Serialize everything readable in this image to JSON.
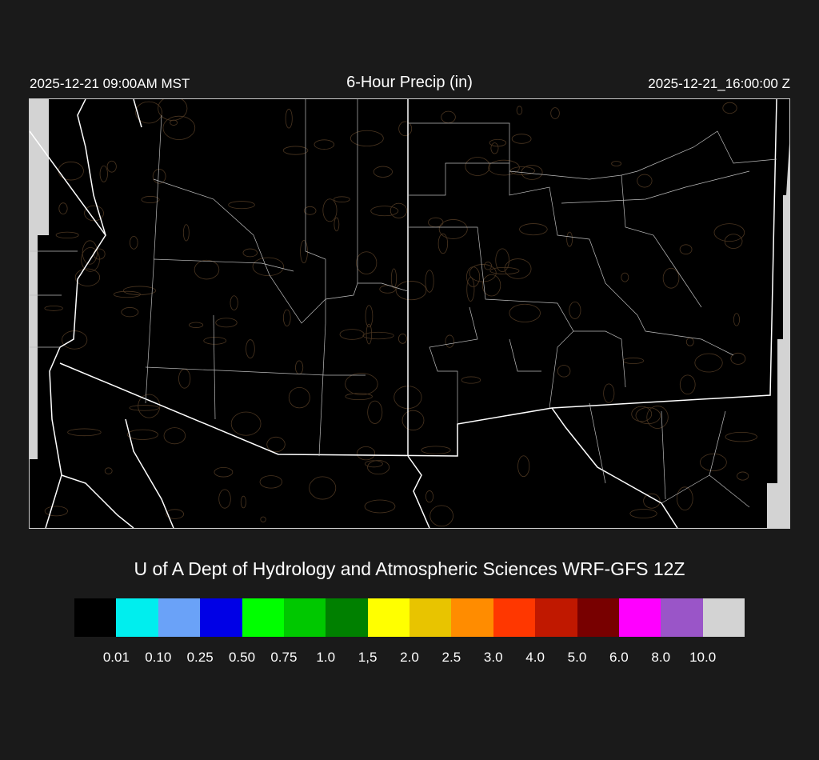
{
  "header": {
    "local_time": "2025-12-21 09:00AM MST",
    "title": "6-Hour Precip (in)",
    "valid_time": "2025-12-21_16:00:00 Z"
  },
  "credit": "U of A Dept of Hydrology and Atmospheric Sciences WRF-GFS 12Z",
  "colorbar": {
    "colors": [
      "#000000",
      "#00eeee",
      "#6aa2f8",
      "#0000e6",
      "#00ff00",
      "#00c800",
      "#008000",
      "#ffff00",
      "#e8c400",
      "#ff8c00",
      "#ff3700",
      "#c01800",
      "#780000",
      "#ff00ff",
      "#9a55c8",
      "#d3d3d3"
    ],
    "labels": [
      "0.01",
      "0.10",
      "0.25",
      "0.50",
      "0.75",
      "1.0",
      "1,5",
      "2.0",
      "2.5",
      "3.0",
      "4.0",
      "5.0",
      "6.0",
      "8.0",
      "10.0"
    ]
  },
  "map": {
    "background": "#000000",
    "border_color": "#ffffff",
    "contour_color": "#4a3520",
    "no_data_color": "#d3d3d3"
  }
}
